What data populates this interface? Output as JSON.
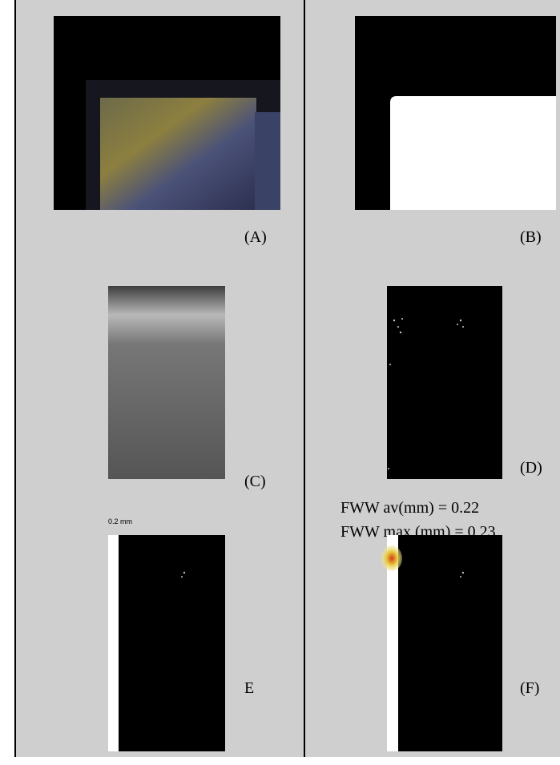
{
  "panels": [
    {
      "label": "(A)"
    },
    {
      "label": "(B)"
    },
    {
      "label": "(C)"
    },
    {
      "label": "(D)"
    },
    {
      "label": "E",
      "scale_label": "0.2 mm"
    },
    {
      "label": "(F)",
      "annotations": [
        "FWW av(mm) = 0.22",
        "FWW max (mm) = 0,23"
      ]
    }
  ]
}
